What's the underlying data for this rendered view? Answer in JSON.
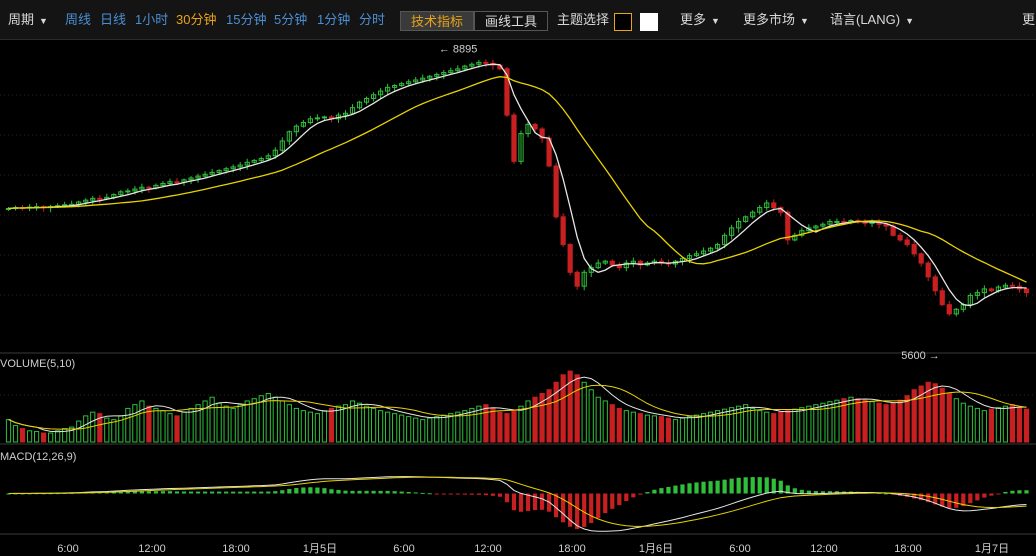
{
  "toolbar": {
    "period": "周期",
    "periods": [
      {
        "label": "周线",
        "state": "normal"
      },
      {
        "label": "日线",
        "state": "normal"
      },
      {
        "label": "1小时",
        "state": "normal"
      },
      {
        "label": "30分钟",
        "state": "selected"
      },
      {
        "label": "15分钟",
        "state": "normal"
      },
      {
        "label": "5分钟",
        "state": "normal"
      },
      {
        "label": "1分钟",
        "state": "normal"
      },
      {
        "label": "分时",
        "state": "normal"
      }
    ],
    "indicators": "技术指标",
    "drawing_tools": "画线工具",
    "theme": "主题选择",
    "theme_colors": [
      "#000000",
      "#ffffff"
    ],
    "more": "更多",
    "more_markets": "更多市场",
    "language": "语言(LANG)",
    "overflow": "更"
  },
  "chart_data": {
    "type": "candlestick",
    "price_high_marker": "8895",
    "price_low_marker": "5600",
    "x_tick_labels": [
      "6:00",
      "12:00",
      "18:00",
      "1月5日",
      "6:00",
      "12:00",
      "18:00",
      "1月6日",
      "6:00",
      "12:00",
      "18:00",
      "1月7日"
    ],
    "grid": true,
    "colors": {
      "up": "#2fbf3a",
      "down": "#c82020",
      "ma_fast": "#e6e6e6",
      "ma_slow": "#e8d200",
      "text": "#cfcfcf"
    },
    "close": [
      7290,
      7300,
      7295,
      7305,
      7310,
      7300,
      7310,
      7320,
      7330,
      7335,
      7360,
      7380,
      7400,
      7395,
      7410,
      7440,
      7470,
      7480,
      7500,
      7520,
      7510,
      7540,
      7560,
      7580,
      7575,
      7600,
      7620,
      7640,
      7660,
      7680,
      7700,
      7720,
      7740,
      7760,
      7790,
      7810,
      7830,
      7860,
      7920,
      8020,
      8120,
      8180,
      8220,
      8260,
      8270,
      8280,
      8260,
      8300,
      8320,
      8380,
      8440,
      8480,
      8520,
      8560,
      8600,
      8620,
      8640,
      8660,
      8680,
      8700,
      8720,
      8740,
      8760,
      8780,
      8800,
      8830,
      8850,
      8870,
      8860,
      8840,
      8800,
      8300,
      7800,
      8100,
      8200,
      8150,
      8050,
      7750,
      7200,
      6900,
      6600,
      6450,
      6600,
      6650,
      6700,
      6720,
      6680,
      6650,
      6700,
      6720,
      6680,
      6700,
      6720,
      6700,
      6690,
      6720,
      6750,
      6780,
      6800,
      6830,
      6860,
      6900,
      7000,
      7080,
      7150,
      7200,
      7250,
      7300,
      7350,
      7300,
      7250,
      6950,
      7000,
      7050,
      7080,
      7100,
      7120,
      7150,
      7150,
      7140,
      7160,
      7150,
      7130,
      7140,
      7120,
      7100,
      7000,
      6950,
      6900,
      6800,
      6700,
      6550,
      6400,
      6250,
      6150,
      6200,
      6250,
      6350,
      6380,
      6420,
      6400,
      6440,
      6460,
      6450,
      6420,
      6380
    ],
    "open": [
      7280,
      7290,
      7300,
      7295,
      7305,
      7310,
      7300,
      7310,
      7320,
      7330,
      7335,
      7360,
      7380,
      7400,
      7395,
      7410,
      7440,
      7470,
      7480,
      7500,
      7520,
      7510,
      7540,
      7560,
      7580,
      7575,
      7600,
      7620,
      7640,
      7660,
      7680,
      7700,
      7720,
      7740,
      7760,
      7790,
      7810,
      7830,
      7860,
      7920,
      8020,
      8120,
      8180,
      8220,
      8260,
      8270,
      8280,
      8260,
      8300,
      8320,
      8380,
      8440,
      8480,
      8520,
      8560,
      8600,
      8620,
      8640,
      8660,
      8680,
      8700,
      8720,
      8740,
      8760,
      8780,
      8800,
      8830,
      8850,
      8870,
      8860,
      8840,
      8800,
      8300,
      7800,
      8100,
      8200,
      8150,
      8050,
      7750,
      7200,
      6900,
      6600,
      6450,
      6600,
      6650,
      6700,
      6720,
      6680,
      6650,
      6700,
      6720,
      6680,
      6700,
      6720,
      6700,
      6690,
      6720,
      6750,
      6780,
      6800,
      6830,
      6860,
      6900,
      7000,
      7080,
      7150,
      7200,
      7250,
      7300,
      7350,
      7300,
      7250,
      6950,
      7000,
      7050,
      7080,
      7100,
      7120,
      7150,
      7150,
      7140,
      7160,
      7150,
      7130,
      7140,
      7120,
      7100,
      7000,
      6950,
      6900,
      6800,
      6700,
      6550,
      6400,
      6250,
      6150,
      6200,
      6250,
      6350,
      6380,
      6420,
      6400,
      6440,
      6460,
      6450,
      6420
    ],
    "volume": [
      30,
      22,
      18,
      15,
      14,
      12,
      12,
      15,
      18,
      20,
      28,
      35,
      40,
      38,
      32,
      30,
      35,
      45,
      50,
      55,
      48,
      45,
      42,
      38,
      35,
      40,
      45,
      50,
      55,
      60,
      52,
      48,
      45,
      50,
      55,
      58,
      62,
      65,
      60,
      55,
      50,
      45,
      42,
      40,
      38,
      42,
      45,
      48,
      50,
      55,
      52,
      48,
      45,
      42,
      40,
      38,
      36,
      34,
      32,
      30,
      32,
      34,
      36,
      38,
      40,
      42,
      45,
      48,
      50,
      45,
      40,
      38,
      42,
      48,
      55,
      60,
      65,
      70,
      80,
      90,
      95,
      90,
      80,
      70,
      60,
      55,
      50,
      45,
      42,
      40,
      38,
      36,
      35,
      34,
      32,
      30,
      32,
      34,
      36,
      38,
      40,
      42,
      44,
      46,
      48,
      50,
      45,
      42,
      40,
      38,
      40,
      42,
      44,
      46,
      48,
      50,
      52,
      54,
      56,
      58,
      60,
      58,
      56,
      54,
      52,
      50,
      52,
      56,
      62,
      70,
      75,
      80,
      78,
      72,
      65,
      58,
      52,
      48,
      45,
      42,
      44,
      46,
      48,
      50,
      46,
      44
    ],
    "volume_label": "VOLUME(5,10)",
    "macd_label": "MACD(12,26,9)"
  }
}
